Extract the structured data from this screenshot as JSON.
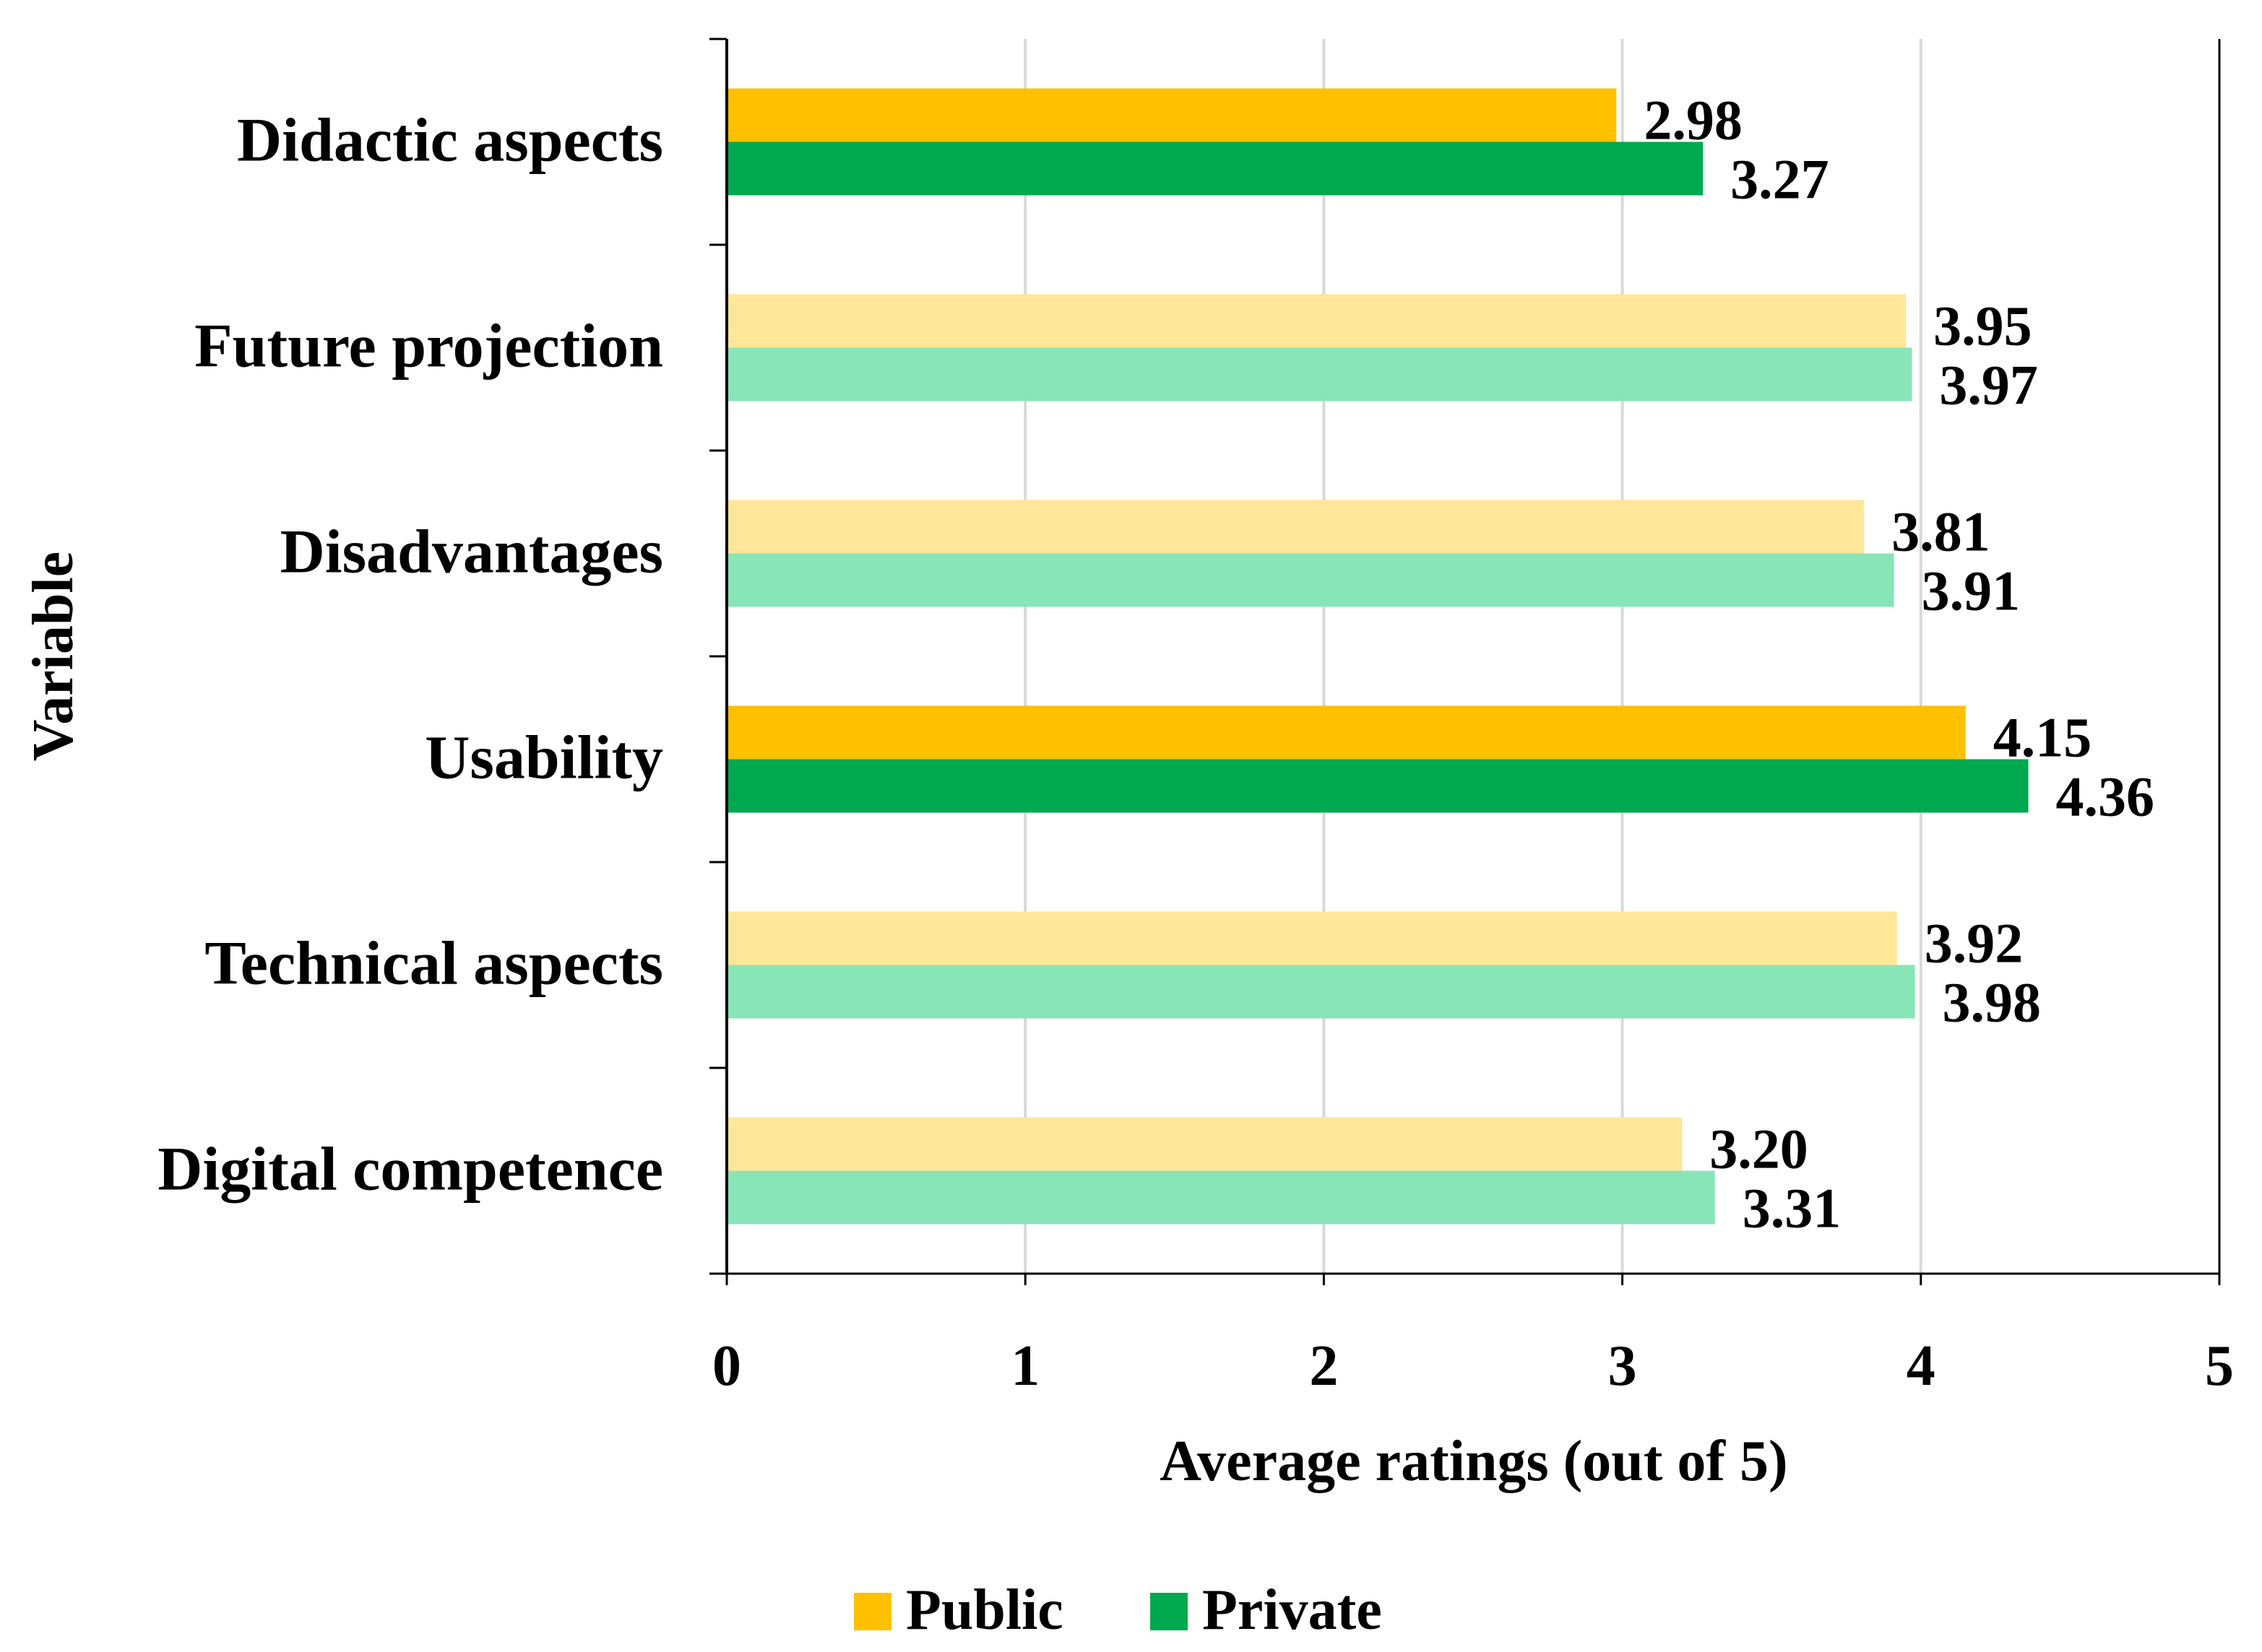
{
  "chart_data": {
    "type": "bar",
    "orientation": "horizontal",
    "title": "",
    "xlabel": "Average ratings (out of 5)",
    "ylabel": "Variable",
    "xlim": [
      0,
      5
    ],
    "xticks": [
      "0",
      "1",
      "2",
      "3",
      "4",
      "5"
    ],
    "grid": "vertical",
    "legend_position": "bottom",
    "categories": [
      "Didactic aspects",
      "Future projection",
      "Disadvantages",
      "Usability",
      "Technical aspects",
      "Digital competence"
    ],
    "highlighted": [
      true,
      false,
      false,
      true,
      false,
      false
    ],
    "series": [
      {
        "name": "Public",
        "values": [
          2.98,
          3.95,
          3.81,
          4.15,
          3.92,
          3.2
        ],
        "labels": [
          "2.98",
          "3.95",
          "3.81",
          "4.15",
          "3.92",
          "3.20"
        ],
        "color": "#FFC000",
        "pale_color": "#FFE699"
      },
      {
        "name": "Private",
        "values": [
          3.27,
          3.97,
          3.91,
          4.36,
          3.98,
          3.31
        ],
        "labels": [
          "3.27",
          "3.97",
          "3.91",
          "4.36",
          "3.98",
          "3.31"
        ],
        "color": "#00A94F",
        "pale_color": "#87E5B8"
      }
    ]
  }
}
